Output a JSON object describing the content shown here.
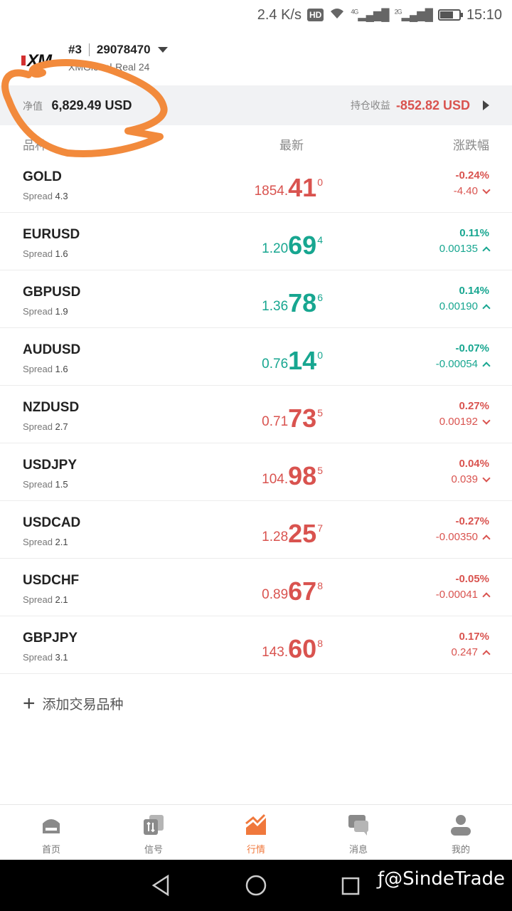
{
  "status_bar": {
    "speed": "2.4 K/s",
    "hd": "HD",
    "net1": "4G",
    "net2": "2G",
    "time": "15:10",
    "battery_level": 0.7
  },
  "account": {
    "index": "#3",
    "number": "29078470",
    "server": "XMGlobal-Real 24",
    "logo_text": "XM"
  },
  "equity": {
    "label": "净值",
    "value": "6,829.49 USD",
    "pl_label": "持仓收益",
    "pl_value": "-852.82 USD"
  },
  "columns": {
    "symbol": "品种",
    "latest": "最新",
    "change": "涨跌幅"
  },
  "spread_label": "Spread",
  "quotes": [
    {
      "symbol": "GOLD",
      "spread": "4.3",
      "pre": "1854.",
      "big": "41",
      "sup": "0",
      "pct": "-0.24%",
      "abs": "-4.40",
      "color": "red",
      "dir": "down"
    },
    {
      "symbol": "EURUSD",
      "spread": "1.6",
      "pre": "1.20",
      "big": "69",
      "sup": "4",
      "pct": "0.11%",
      "abs": "0.00135",
      "color": "green",
      "dir": "up"
    },
    {
      "symbol": "GBPUSD",
      "spread": "1.9",
      "pre": "1.36",
      "big": "78",
      "sup": "6",
      "pct": "0.14%",
      "abs": "0.00190",
      "color": "green",
      "dir": "up"
    },
    {
      "symbol": "AUDUSD",
      "spread": "1.6",
      "pre": "0.76",
      "big": "14",
      "sup": "0",
      "pct": "-0.07%",
      "abs": "-0.00054",
      "color": "green",
      "dir": "up"
    },
    {
      "symbol": "NZDUSD",
      "spread": "2.7",
      "pre": "0.71",
      "big": "73",
      "sup": "5",
      "pct": "0.27%",
      "abs": "0.00192",
      "color": "red",
      "dir": "down"
    },
    {
      "symbol": "USDJPY",
      "spread": "1.5",
      "pre": "104.",
      "big": "98",
      "sup": "5",
      "pct": "0.04%",
      "abs": "0.039",
      "color": "red",
      "dir": "down"
    },
    {
      "symbol": "USDCAD",
      "spread": "2.1",
      "pre": "1.28",
      "big": "25",
      "sup": "7",
      "pct": "-0.27%",
      "abs": "-0.00350",
      "color": "red",
      "dir": "up"
    },
    {
      "symbol": "USDCHF",
      "spread": "2.1",
      "pre": "0.89",
      "big": "67",
      "sup": "8",
      "pct": "-0.05%",
      "abs": "-0.00041",
      "color": "red",
      "dir": "up"
    },
    {
      "symbol": "GBPJPY",
      "spread": "3.1",
      "pre": "143.",
      "big": "60",
      "sup": "8",
      "pct": "0.17%",
      "abs": "0.247",
      "color": "red",
      "dir": "up"
    }
  ],
  "add_label": "添加交易品种",
  "tabs": [
    {
      "label": "首页",
      "icon": "home-icon"
    },
    {
      "label": "信号",
      "icon": "signal-icon"
    },
    {
      "label": "行情",
      "icon": "quotes-chart-icon",
      "active": true
    },
    {
      "label": "消息",
      "icon": "message-icon"
    },
    {
      "label": "我的",
      "icon": "profile-icon"
    }
  ],
  "watermark": "@SindeTrade",
  "colors": {
    "red": "#d9534f",
    "green": "#17a690",
    "accent": "#f0783c",
    "annotation": "#f28a3c"
  }
}
